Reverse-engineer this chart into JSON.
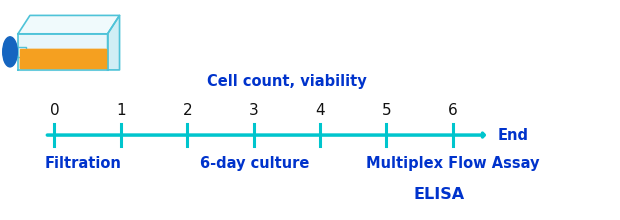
{
  "tick_positions": [
    0,
    1,
    2,
    3,
    4,
    5,
    6
  ],
  "tick_labels": [
    "0",
    "1",
    "2",
    "3",
    "4",
    "5",
    "6"
  ],
  "timeline_color": "#00C5CD",
  "text_color": "#0033CC",
  "tick_label_color": "#111111",
  "label_filtration": "Filtration",
  "label_culture": "6-day culture",
  "label_cell_count": "Cell count, viability",
  "label_end": "End",
  "label_mfa": "Multiplex Flow Assay",
  "label_elisa": "ELISA",
  "background_color": "#FFFFFF",
  "fontsize_labels": 10.5,
  "fontsize_tick": 11,
  "fontsize_elisa": 11.5
}
